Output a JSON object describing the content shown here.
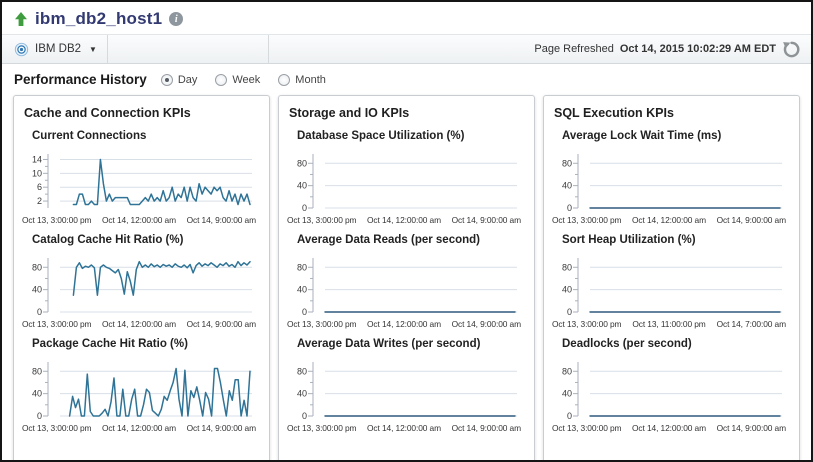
{
  "header": {
    "title": "ibm_db2_host1",
    "info_icon": "i"
  },
  "menubar": {
    "target_menu_label": "IBM DB2",
    "refresh_prefix": "Page Refreshed",
    "refresh_time": "Oct 14, 2015 10:02:29 AM EDT"
  },
  "controls": {
    "title": "Performance History",
    "options": [
      {
        "label": "Day",
        "selected": true
      },
      {
        "label": "Week",
        "selected": false
      },
      {
        "label": "Month",
        "selected": false
      }
    ]
  },
  "colors": {
    "line": "#2f7396",
    "flat_line": "#2e5a7d",
    "grid": "#d9dfe7",
    "axis": "#a9b2bd",
    "title_navy": "#333a72",
    "arrow_green": "#3f9d3f"
  },
  "chart_data": [
    {
      "title": "Cache and Connection KPIs",
      "charts": [
        {
          "type": "line",
          "title": "Current Connections",
          "yticks": [
            2,
            6,
            10,
            14
          ],
          "ylim": [
            0,
            15
          ],
          "x_labels": [
            "Oct 13, 3:00:00 pm",
            "Oct 14, 12:00:00 am",
            "Oct 14, 9:00:00 am"
          ],
          "start_frac": 0.07,
          "values": [
            1,
            1,
            4,
            4,
            1,
            1,
            2,
            1,
            1,
            14,
            7,
            2,
            4,
            2,
            3,
            3,
            3,
            3,
            3,
            1,
            1,
            1,
            1,
            2,
            3,
            2,
            4,
            2,
            3,
            2,
            5,
            2,
            3,
            6,
            2,
            4,
            3,
            6,
            2,
            6,
            3,
            2,
            7,
            4,
            6,
            5,
            4,
            6,
            5,
            6,
            3,
            2,
            5,
            2,
            4,
            1,
            4,
            2,
            4,
            1
          ]
        },
        {
          "type": "line",
          "title": "Catalog Cache Hit Ratio (%)",
          "yticks": [
            0,
            40,
            80
          ],
          "ylim": [
            0,
            93
          ],
          "x_labels": [
            "Oct 13, 3:00:00 pm",
            "Oct 14, 12:00:00 am",
            "Oct 14, 9:00:00 am"
          ],
          "start_frac": 0.07,
          "values": [
            30,
            80,
            88,
            78,
            82,
            80,
            84,
            79,
            30,
            80,
            84,
            80,
            78,
            74,
            70,
            76,
            60,
            32,
            72,
            55,
            30,
            76,
            90,
            80,
            84,
            80,
            86,
            81,
            84,
            80,
            85,
            82,
            84,
            80,
            86,
            82,
            80,
            84,
            79,
            85,
            70,
            83,
            88,
            82,
            86,
            83,
            88,
            84,
            80,
            86,
            83,
            88,
            82,
            85,
            80,
            90,
            83,
            88,
            84,
            90
          ]
        },
        {
          "type": "line",
          "title": "Package Cache Hit Ratio (%)",
          "yticks": [
            0,
            40,
            80
          ],
          "ylim": [
            0,
            93
          ],
          "x_labels": [
            "Oct 13, 3:00:00 pm",
            "Oct 14, 12:00:00 am",
            "Oct 14, 9:00:00 am"
          ],
          "start_frac": 0.05,
          "values": [
            0,
            35,
            15,
            30,
            0,
            0,
            75,
            8,
            0,
            0,
            0,
            5,
            12,
            0,
            25,
            68,
            0,
            0,
            48,
            0,
            0,
            30,
            48,
            0,
            0,
            20,
            48,
            42,
            10,
            5,
            0,
            12,
            35,
            28,
            45,
            60,
            85,
            30,
            0,
            82,
            0,
            45,
            33,
            52,
            28,
            0,
            42,
            30,
            0,
            85,
            85,
            60,
            28,
            0,
            45,
            28,
            65,
            65,
            0,
            28,
            0,
            80
          ]
        }
      ]
    },
    {
      "title": "Storage and IO KPIs",
      "charts": [
        {
          "type": "line",
          "title": "Database Space Utilization (%)",
          "yticks": [
            0,
            40,
            80
          ],
          "ylim": [
            0,
            93
          ],
          "x_labels": [
            "Oct 13, 3:00:00 pm",
            "Oct 14, 12:00:00 am",
            "Oct 14, 9:00:00 am"
          ],
          "start_frac": 0,
          "values": null
        },
        {
          "type": "line",
          "title": "Average Data Reads (per second)",
          "yticks": [
            0,
            40,
            80
          ],
          "ylim": [
            0,
            93
          ],
          "x_labels": [
            "Oct 13, 3:00:00 pm",
            "Oct 14, 12:00:00 am",
            "Oct 14, 9:00:00 am"
          ],
          "start_frac": 0,
          "values": [
            0,
            0
          ]
        },
        {
          "type": "line",
          "title": "Average Data Writes (per second)",
          "yticks": [
            0,
            40,
            80
          ],
          "ylim": [
            0,
            93
          ],
          "x_labels": [
            "Oct 13, 3:00:00 pm",
            "Oct 14, 12:00:00 am",
            "Oct 14, 9:00:00 am"
          ],
          "start_frac": 0,
          "values": [
            0,
            0
          ]
        }
      ]
    },
    {
      "title": "SQL Execution KPIs",
      "charts": [
        {
          "type": "line",
          "title": "Average Lock Wait Time (ms)",
          "yticks": [
            0,
            40,
            80
          ],
          "ylim": [
            0,
            93
          ],
          "x_labels": [
            "Oct 13, 3:00:00 pm",
            "Oct 14, 12:00:00 am",
            "Oct 14, 9:00:00 am"
          ],
          "start_frac": 0,
          "values": [
            0,
            0
          ]
        },
        {
          "type": "line",
          "title": "Sort Heap Utilization (%)",
          "yticks": [
            0,
            40,
            80
          ],
          "ylim": [
            0,
            93
          ],
          "x_labels": [
            "Oct 13, 3:00:00 pm",
            "Oct 13, 11:00:00 pm",
            "Oct 14, 7:00:00 am"
          ],
          "start_frac": 0,
          "values": [
            0,
            0
          ]
        },
        {
          "type": "line",
          "title": "Deadlocks (per second)",
          "yticks": [
            0,
            40,
            80
          ],
          "ylim": [
            0,
            93
          ],
          "x_labels": [
            "Oct 13, 3:00:00 pm",
            "Oct 14, 12:00:00 am",
            "Oct 14, 9:00:00 am"
          ],
          "start_frac": 0,
          "values": [
            0,
            0
          ]
        }
      ]
    }
  ]
}
